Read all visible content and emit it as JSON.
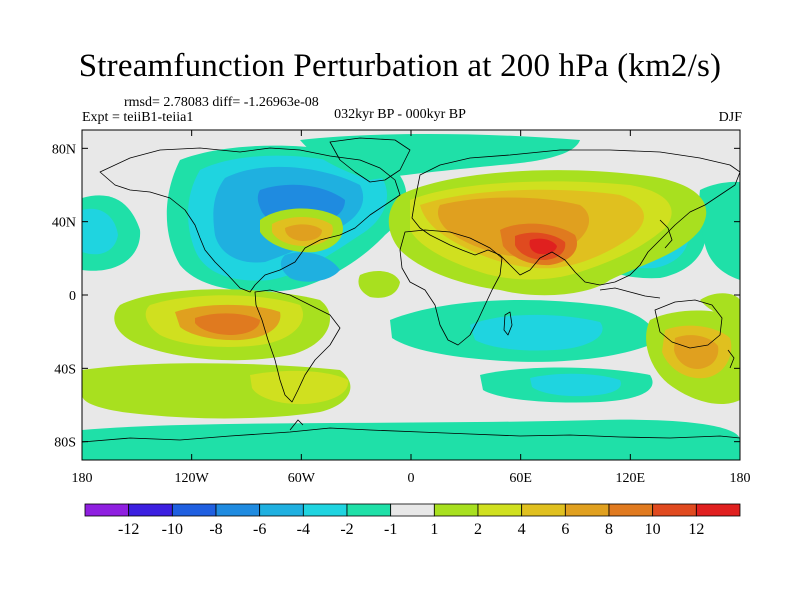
{
  "figure": {
    "title": "Streamfunction Perturbation at 200 hPa (km2/s)",
    "stats": "rmsd= 2.78083 diff= -1.26963e-08",
    "experiment": "Expt = teiiB1-teiia1",
    "period": "032kyr BP - 000kyr BP",
    "season": "DJF"
  },
  "map": {
    "projection": "cylindrical-equidistant",
    "lon_range": [
      -180,
      180
    ],
    "lat_range": [
      -90,
      90
    ],
    "background_color": "#e8e8e8",
    "lon_ticks": [
      {
        "value": -180,
        "label": "180"
      },
      {
        "value": -120,
        "label": "120W"
      },
      {
        "value": -60,
        "label": "60W"
      },
      {
        "value": 0,
        "label": "0"
      },
      {
        "value": 60,
        "label": "60E"
      },
      {
        "value": 120,
        "label": "120E"
      },
      {
        "value": 180,
        "label": "180"
      }
    ],
    "lat_ticks": [
      {
        "value": 80,
        "label": "80N"
      },
      {
        "value": 40,
        "label": "40N"
      },
      {
        "value": 0,
        "label": "0"
      },
      {
        "value": -40,
        "label": "40S"
      },
      {
        "value": -80,
        "label": "80S"
      }
    ]
  },
  "colorbar": {
    "colors": [
      "#8f1fe0",
      "#3c1fe0",
      "#1f5fe0",
      "#1f8be0",
      "#1fb0e0",
      "#1fd4e0",
      "#1fe0a8",
      "#e8e8e8",
      "#a8e01f",
      "#d0e01f",
      "#e0c01f",
      "#e0a01f",
      "#e07a1f",
      "#e04a1f",
      "#e0201f"
    ],
    "labels": [
      "-12",
      "-10",
      "-8",
      "-6",
      "-4",
      "-2",
      "-1",
      "1",
      "2",
      "4",
      "6",
      "8",
      "10",
      "12"
    ]
  }
}
